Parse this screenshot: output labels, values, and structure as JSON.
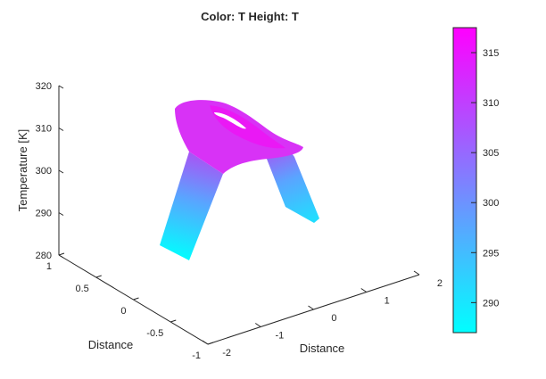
{
  "chart_data": {
    "type": "surface",
    "title": "Color: T  Height: T",
    "zlabel": "Temperature [K]",
    "xlabel": "Distance",
    "ylabel": "Distance",
    "zlim": [
      280,
      320
    ],
    "zticks": [
      "280",
      "290",
      "300",
      "310",
      "320"
    ],
    "xticks": [
      "-2",
      "-1",
      "0",
      "1",
      "2"
    ],
    "yticks": [
      "-1",
      "-0.5",
      "0",
      "0.5",
      "1"
    ],
    "colorbar": {
      "range": [
        287,
        317.5
      ],
      "ticks": [
        "290",
        "295",
        "300",
        "305",
        "310",
        "315"
      ],
      "colormap": "cool",
      "color_low": "#00ffff",
      "color_high": "#ff00ff"
    },
    "surface": {
      "description_values": {
        "peak_temperature": 317,
        "lower_leg_temperature": 287
      }
    }
  }
}
